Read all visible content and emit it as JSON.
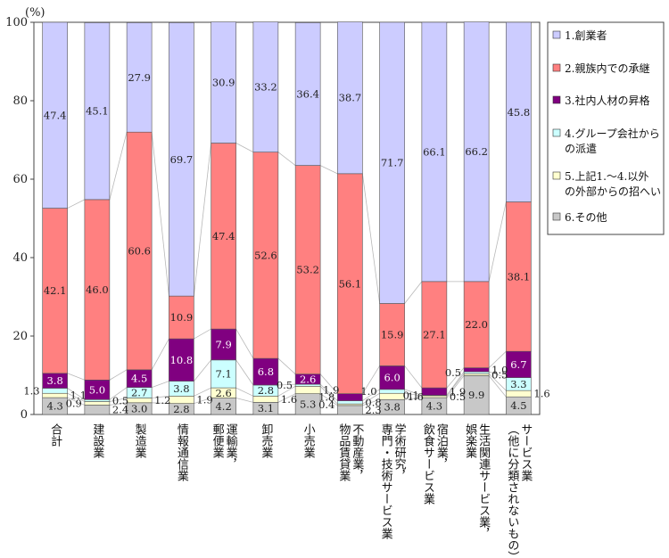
{
  "chart_data": {
    "type": "bar",
    "stacked": true,
    "ylabel": "(%)",
    "ylim": [
      0,
      100
    ],
    "yticks": [
      "0",
      "20",
      "40",
      "60",
      "80",
      "100"
    ],
    "categories": [
      "合計",
      "建設業",
      "製造業",
      "情報通信業",
      "運輸業，郵便業",
      "卸売業",
      "小売業",
      "不動産業，物品賃貸業",
      "学術研究，専門・技術サービス業",
      "宿泊業，飲食サービス業",
      "生活関連サービス業，娯楽業",
      "サービス業（他に分類されないもの）"
    ],
    "category_lines": [
      [
        "合計"
      ],
      [
        "建設業"
      ],
      [
        "製造業"
      ],
      [
        "情報通信業"
      ],
      [
        "運輸業，",
        "郵便業"
      ],
      [
        "卸売業"
      ],
      [
        "小売業"
      ],
      [
        "不動産業，",
        "物品賃貸業"
      ],
      [
        "学術研究，",
        "専門・技術サービス業"
      ],
      [
        "宿泊業，",
        "飲食サービス業"
      ],
      [
        "生活関連サービス業，",
        "娯楽業"
      ],
      [
        "サービス業",
        "（他に分類されないもの）"
      ]
    ],
    "series": [
      {
        "name": "6.その他",
        "color": "#c8c8c8",
        "text_color": "#222222",
        "values": [
          4.3,
          2.4,
          3.0,
          2.8,
          4.2,
          3.1,
          5.3,
          2.3,
          3.8,
          4.3,
          9.9,
          4.5
        ]
      },
      {
        "name": "5.上記1.〜4.以外の外部からの招へい",
        "color": "#ffffd0",
        "text_color": "#222222",
        "values": [
          1.1,
          0.9,
          1.2,
          1.9,
          2.6,
          1.6,
          1.9,
          0.4,
          1.6,
          0.5,
          0.5,
          1.6
        ]
      },
      {
        "name": "4.グループ会社からの派遣",
        "color": "#ccffff",
        "text_color": "#222222",
        "values": [
          1.3,
          0.5,
          2.7,
          3.8,
          7.1,
          2.8,
          0.5,
          0.8,
          1.0,
          0.1,
          0.5,
          3.3
        ]
      },
      {
        "name": "3.社内人材の昇格",
        "color": "#800080",
        "text_color": "#ffffff",
        "values": [
          3.8,
          5.0,
          4.5,
          10.8,
          7.9,
          6.8,
          2.6,
          1.8,
          6.0,
          1.9,
          1.0,
          6.7
        ]
      },
      {
        "name": "2.親族内での承継",
        "color": "#ff8080",
        "text_color": "#222222",
        "values": [
          42.1,
          46.0,
          60.6,
          10.9,
          47.4,
          52.6,
          53.2,
          56.1,
          15.9,
          27.1,
          22.0,
          38.1
        ]
      },
      {
        "name": "1.創業者",
        "color": "#ccccff",
        "text_color": "#222222",
        "values": [
          47.4,
          45.1,
          27.9,
          69.7,
          30.9,
          33.2,
          36.4,
          38.7,
          71.7,
          66.1,
          66.2,
          45.8
        ]
      }
    ],
    "legend": [
      {
        "lines": [
          "1.創業者"
        ],
        "color": "#ccccff"
      },
      {
        "lines": [
          "2.親族内での承継"
        ],
        "color": "#ff8080"
      },
      {
        "lines": [
          "3.社内人材の昇格"
        ],
        "color": "#800080"
      },
      {
        "lines": [
          "4.グループ会社から",
          "の派遣"
        ],
        "color": "#ccffff"
      },
      {
        "lines": [
          "5.上記1.〜4.以外",
          "の外部からの招へい"
        ],
        "color": "#ffffd0"
      },
      {
        "lines": [
          "6.その他"
        ],
        "color": "#c8c8c8"
      }
    ],
    "legend_position": "right"
  }
}
